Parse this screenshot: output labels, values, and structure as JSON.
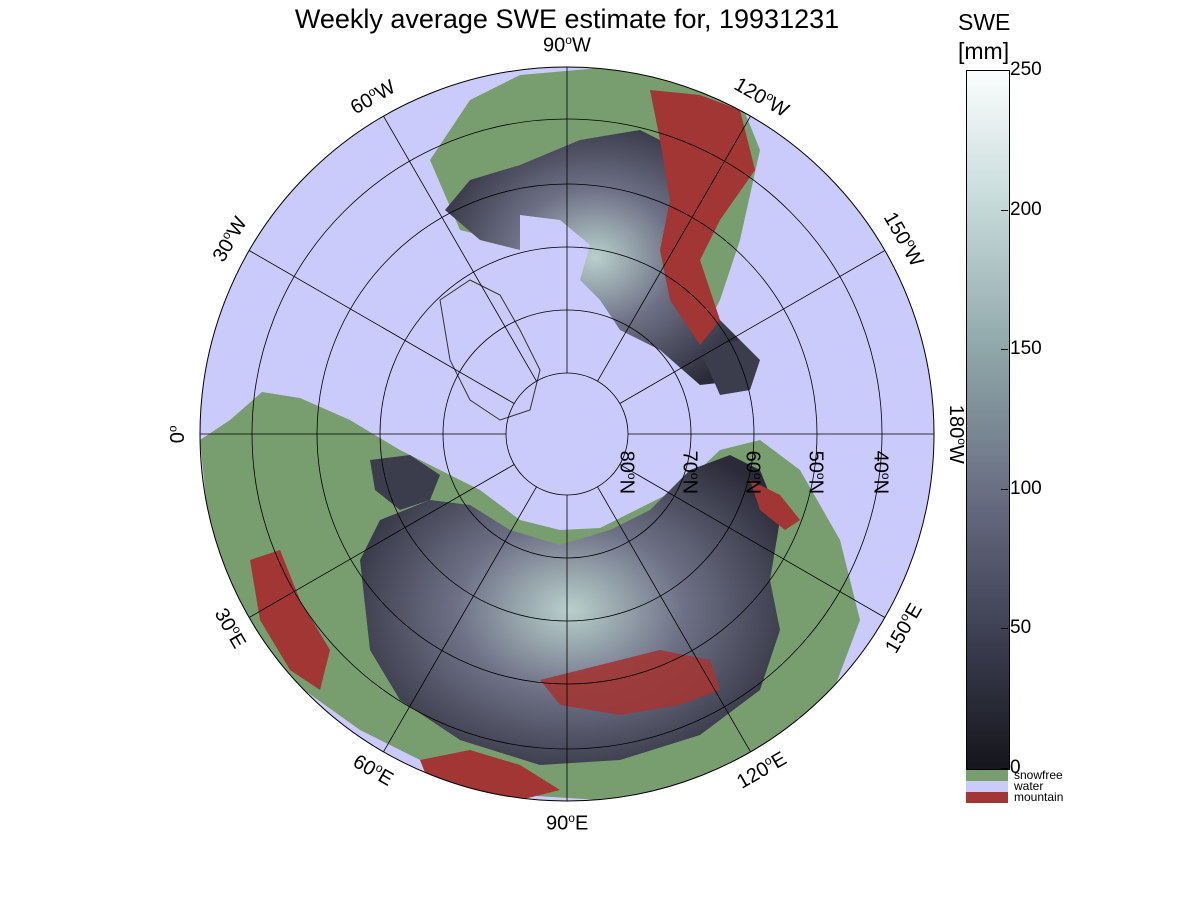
{
  "title": "Weekly average SWE estimate for, 19931231",
  "colorbar": {
    "title": "SWE",
    "unit": "[mm]",
    "ticks": [
      "250",
      "200",
      "150",
      "100",
      "50",
      "0"
    ],
    "tick_values": [
      250,
      200,
      150,
      100,
      50,
      0
    ],
    "range": [
      0,
      250
    ],
    "gradient_top": "#fbfdfd",
    "gradient_bottom": "#15151c",
    "categories": [
      {
        "label": "snowfree",
        "color": "#789e70"
      },
      {
        "label": "water",
        "color": "#cbcbfb"
      },
      {
        "label": "mountain",
        "color": "#a13634"
      }
    ]
  },
  "map": {
    "projection": "north polar stereographic",
    "water_color": "#cbcbfb",
    "land_color": "#789e70",
    "mountain_color": "#a13634",
    "snow_dark_color": "#2b2b38",
    "snow_mid_color": "#5c5e72",
    "snow_light_color": "#c9dcdc",
    "longitude_labels": [
      {
        "deg": "90",
        "dir": "W"
      },
      {
        "deg": "120",
        "dir": "W"
      },
      {
        "deg": "150",
        "dir": "W"
      },
      {
        "deg": "180",
        "dir": "W"
      },
      {
        "deg": "150",
        "dir": "E"
      },
      {
        "deg": "120",
        "dir": "E"
      },
      {
        "deg": "90",
        "dir": "E"
      },
      {
        "deg": "60",
        "dir": "E"
      },
      {
        "deg": "30",
        "dir": "E"
      },
      {
        "deg": "0",
        "dir": ""
      },
      {
        "deg": "30",
        "dir": "W"
      },
      {
        "deg": "60",
        "dir": "W"
      }
    ],
    "latitude_labels": [
      {
        "deg": "80",
        "dir": "N"
      },
      {
        "deg": "70",
        "dir": "N"
      },
      {
        "deg": "60",
        "dir": "N"
      },
      {
        "deg": "50",
        "dir": "N"
      },
      {
        "deg": "40",
        "dir": "N"
      }
    ]
  }
}
